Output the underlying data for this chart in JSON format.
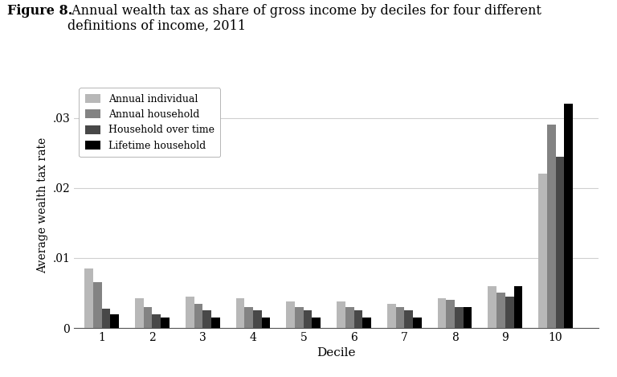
{
  "title_bold": "Figure 8.",
  "title_rest": " Annual wealth tax as share of gross income by deciles for four different\ndefinitions of income, 2011",
  "xlabel": "Decile",
  "ylabel": "Average wealth tax rate",
  "deciles": [
    1,
    2,
    3,
    4,
    5,
    6,
    7,
    8,
    9,
    10
  ],
  "series": {
    "Annual individual": [
      0.0085,
      0.0042,
      0.0045,
      0.0042,
      0.0038,
      0.0038,
      0.0035,
      0.0042,
      0.006,
      0.022
    ],
    "Annual household": [
      0.0065,
      0.003,
      0.0035,
      0.003,
      0.003,
      0.003,
      0.003,
      0.004,
      0.005,
      0.029
    ],
    "Household over time": [
      0.0028,
      0.002,
      0.0025,
      0.0025,
      0.0025,
      0.0025,
      0.0025,
      0.003,
      0.0045,
      0.0245
    ],
    "Lifetime household": [
      0.002,
      0.0015,
      0.0015,
      0.0015,
      0.0015,
      0.0015,
      0.0015,
      0.003,
      0.006,
      0.032
    ]
  },
  "colors": {
    "Annual individual": "#b8b8b8",
    "Annual household": "#838383",
    "Household over time": "#484848",
    "Lifetime household": "#000000"
  },
  "ylim": [
    0,
    0.035
  ],
  "yticks": [
    0,
    0.01,
    0.02,
    0.03
  ],
  "ytick_labels": [
    "0",
    ".01",
    ".02",
    ".03"
  ],
  "background_color": "#ffffff",
  "grid_color": "#d0d0d0"
}
